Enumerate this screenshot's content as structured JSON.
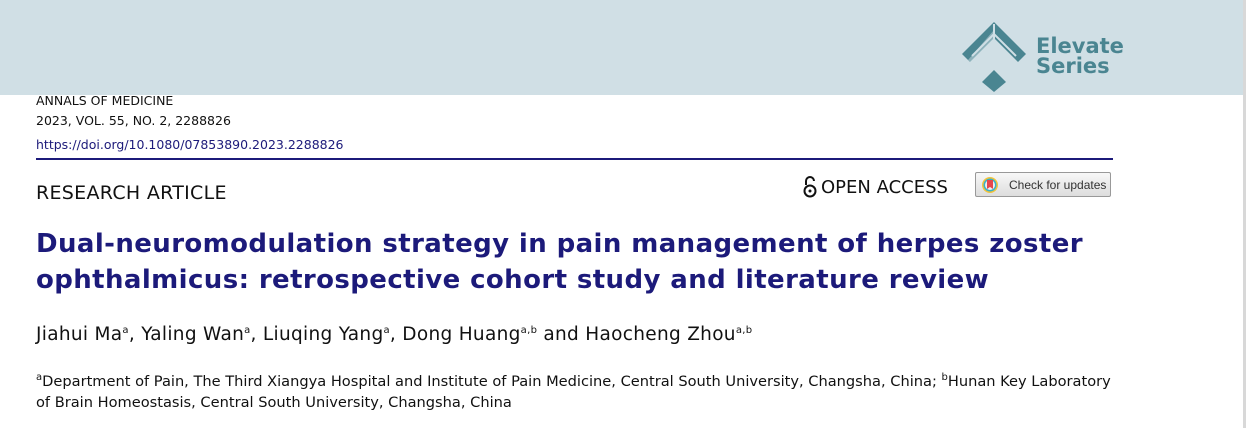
{
  "header": {
    "logo_text_line1": "Elevate",
    "logo_text_line2": "Series",
    "brand_color": "#4a8591",
    "band_color": "#d0dfe5"
  },
  "journal": {
    "name": "ANNALS OF MEDICINE",
    "citation": "2023, VOL. 55, NO. 2, 2288826",
    "doi": "https://doi.org/10.1080/07853890.2023.2288826"
  },
  "article_type": "RESEARCH ARTICLE",
  "open_access": {
    "label": "OPEN ACCESS",
    "icon": "open-lock-icon"
  },
  "check_updates": {
    "label": "Check for updates"
  },
  "title": "Dual-neuromodulation strategy in pain management of herpes zoster ophthalmicus: retrospective cohort study and literature review",
  "title_color": "#1c1a7a",
  "authors": [
    {
      "name": "Jiahui Ma",
      "aff": "a",
      "sep": ", "
    },
    {
      "name": "Yaling Wan",
      "aff": "a",
      "sep": ", "
    },
    {
      "name": "Liuqing Yang",
      "aff": "a",
      "sep": ", "
    },
    {
      "name": "Dong Huang",
      "aff": "a,b",
      "sep": " and "
    },
    {
      "name": "Haocheng Zhou",
      "aff": "a,b",
      "sep": ""
    }
  ],
  "affiliations": [
    {
      "mark": "a",
      "text": "Department of Pain, The Third Xiangya Hospital and Institute of Pain Medicine, Central South University, Changsha, China; "
    },
    {
      "mark": "b",
      "text": "Hunan Key Laboratory of Brain Homeostasis, Central South University, Changsha, China"
    }
  ]
}
